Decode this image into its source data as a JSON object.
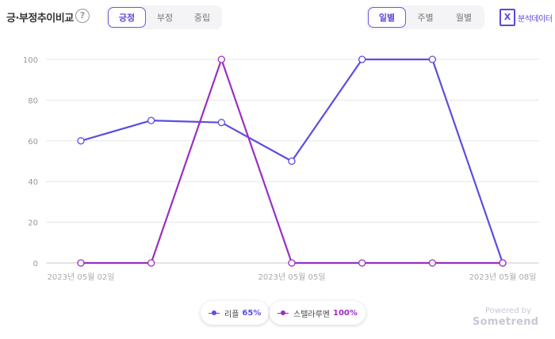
{
  "header": {
    "title": "긍·부정추이비교",
    "help": "?",
    "sentiment_tabs": [
      {
        "label": "긍정",
        "active": true
      },
      {
        "label": "부정",
        "active": false
      },
      {
        "label": "중립",
        "active": false
      }
    ],
    "period_tabs": [
      {
        "label": "일별",
        "active": true
      },
      {
        "label": "주별",
        "active": false
      },
      {
        "label": "월별",
        "active": false
      }
    ],
    "export_icon": "X",
    "export_label": "분석데이터"
  },
  "chart_data": {
    "type": "line",
    "categories": [
      "2023년 05월 02일",
      "2023년 05월 03일",
      "2023년 05월 04일",
      "2023년 05월 05일",
      "2023년 05월 06일",
      "2023년 05월 07일",
      "2023년 05월 08일"
    ],
    "visible_xticks": [
      "2023년 05월 02일",
      "2023년 05월 05일",
      "2023년 05월 08일"
    ],
    "yticks": [
      0,
      20,
      40,
      60,
      80,
      100
    ],
    "ylim": [
      0,
      100
    ],
    "grid": true,
    "legend_position": "bottom-center",
    "series": [
      {
        "name": "리플",
        "legend_value": "65%",
        "color": "#5b4ee0",
        "values": [
          60,
          70,
          69,
          50,
          100,
          100,
          0
        ]
      },
      {
        "name": "스텔라루멘",
        "legend_value": "100%",
        "color": "#9b2fc2",
        "values": [
          0,
          0,
          100,
          0,
          0,
          0,
          0
        ]
      }
    ]
  },
  "footer": {
    "powered_by": "Powered by",
    "brand": "Sometrend"
  }
}
